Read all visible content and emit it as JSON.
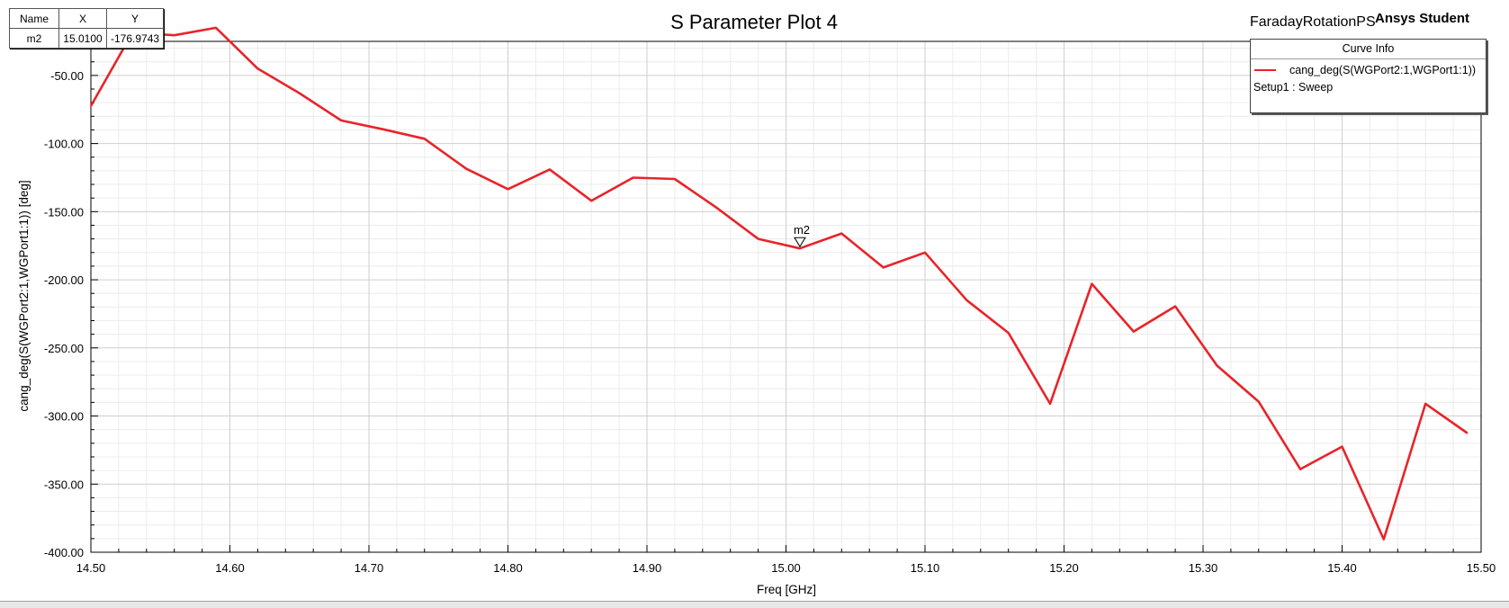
{
  "chart_data": {
    "type": "line",
    "title": "S Parameter Plot 4",
    "xlabel": "Freq [GHz]",
    "ylabel": "cang_deg(S(WGPort2:1,WGPort1:1)) [deg]",
    "xlim": [
      14.5,
      15.5
    ],
    "ylim": [
      -400,
      -25
    ],
    "x_ticks": [
      14.5,
      14.6,
      14.7,
      14.8,
      14.9,
      15.0,
      15.1,
      15.2,
      15.3,
      15.4,
      15.5
    ],
    "x_tick_labels": [
      "14.50",
      "14.60",
      "14.70",
      "14.80",
      "14.90",
      "15.00",
      "15.10",
      "15.20",
      "15.30",
      "15.40",
      "15.50"
    ],
    "y_ticks": [
      -50,
      -100,
      -150,
      -200,
      -250,
      -300,
      -350,
      -400
    ],
    "y_tick_labels": [
      "-50.00",
      "-100.00",
      "-150.00",
      "-200.00",
      "-250.00",
      "-300.00",
      "-350.00",
      "-400.00"
    ],
    "grid": true,
    "legend_placement": "top-right",
    "series": [
      {
        "name": "cang_deg(S(WGPort2:1,WGPort1:1))",
        "color": "#e8242a",
        "x": [
          14.5,
          14.53,
          14.56,
          14.59,
          14.62,
          14.65,
          14.68,
          14.71,
          14.74,
          14.77,
          14.8,
          14.83,
          14.86,
          14.89,
          14.92,
          14.95,
          14.98,
          15.01,
          15.04,
          15.07,
          15.1,
          15.13,
          15.16,
          15.19,
          15.22,
          15.25,
          15.28,
          15.31,
          15.34,
          15.37,
          15.4,
          15.43,
          15.46,
          15.49
        ],
        "y": [
          -72.5,
          -18.5,
          -20.5,
          -15,
          -45,
          -63,
          -83,
          -89.5,
          -96.5,
          -118.5,
          -133.5,
          -119,
          -142,
          -125,
          -126,
          -147,
          -170,
          -177,
          -166,
          -191,
          -180,
          -215,
          -239,
          -291,
          -203,
          -238,
          -219.5,
          -263,
          -289.5,
          -339,
          -322.5,
          -390.5,
          -291,
          -312.5
        ]
      }
    ],
    "markers": [
      {
        "name": "m2",
        "x": 15.01,
        "y": -176.9743
      }
    ]
  },
  "marker_table": {
    "headers": [
      "Name",
      "X",
      "Y"
    ],
    "rows": [
      {
        "name": "m2",
        "x": "15.0100",
        "y": "-176.9743"
      }
    ]
  },
  "legend": {
    "title": "Curve Info",
    "entry": "cang_deg(S(WGPort2:1,WGPort1:1))",
    "setup": "Setup1 : Sweep"
  },
  "project_name": "FaradayRotationPS",
  "brand": "Ansys Student"
}
